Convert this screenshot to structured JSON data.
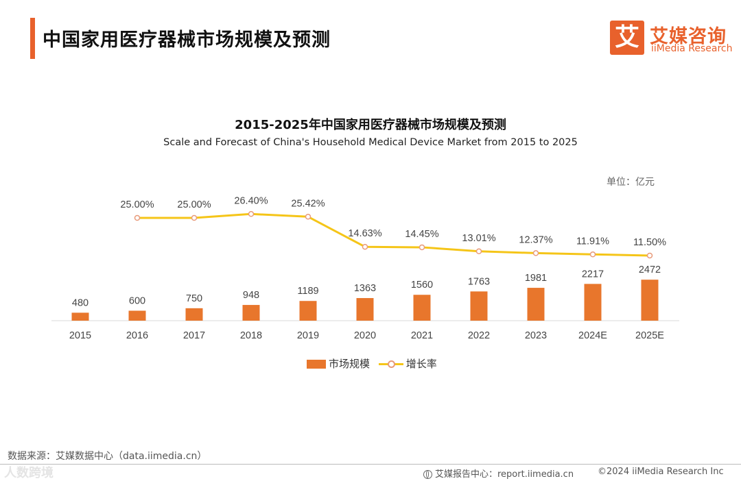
{
  "header": {
    "title": "中国家用医疗器械市场规模及预测",
    "logo_char": "艾",
    "logo_cn": "艾媒咨询",
    "logo_en": "iiMedia Research"
  },
  "colors": {
    "accent": "#e8612c",
    "bar": "#e8762c",
    "line": "#f5c518",
    "marker_stroke": "#e89a7a"
  },
  "chart_data": {
    "type": "bar+line",
    "title": "2015-2025年中国家用医疗器械市场规模及预测",
    "subtitle": "Scale and Forecast of China's Household Medical Device Market from 2015 to 2025",
    "unit": "单位：亿元",
    "categories": [
      "2015",
      "2016",
      "2017",
      "2018",
      "2019",
      "2020",
      "2021",
      "2022",
      "2023",
      "2024E",
      "2025E"
    ],
    "series": [
      {
        "name": "市场规模",
        "type": "bar",
        "values": [
          480,
          600,
          750,
          948,
          1189,
          1363,
          1560,
          1763,
          1981,
          2217,
          2472
        ],
        "labels": [
          "480",
          "600",
          "750",
          "948",
          "1189",
          "1363",
          "1560",
          "1763",
          "1981",
          "2217",
          "2472"
        ]
      },
      {
        "name": "增长率",
        "type": "line",
        "values": [
          null,
          25.0,
          25.0,
          26.4,
          25.42,
          14.63,
          14.45,
          13.01,
          12.37,
          11.91,
          11.5
        ],
        "labels": [
          "",
          "25.00%",
          "25.00%",
          "26.40%",
          "25.42%",
          "14.63%",
          "14.45%",
          "13.01%",
          "12.37%",
          "11.91%",
          "11.50%"
        ]
      }
    ],
    "legend": [
      "市场规模",
      "增长率"
    ],
    "legend_position": "bottom-center"
  },
  "footer": {
    "source": "数据来源：艾媒数据中心（data.iimedia.cn）",
    "watermark": "人数跨境",
    "report": "艾媒报告中心：report.iimedia.cn",
    "copyright": "©2024  iiMedia Research Inc"
  }
}
